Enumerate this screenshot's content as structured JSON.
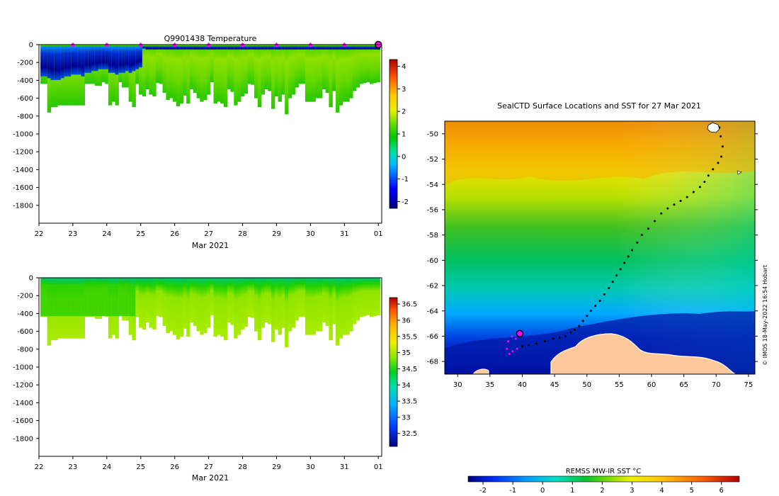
{
  "chart_data": [
    {
      "id": "temperature_section",
      "type": "heatmap",
      "title": "Q9901438  Temperature",
      "xlabel": "Mar 2021",
      "ylabel": "",
      "x_tick_labels": [
        "22",
        "23",
        "24",
        "25",
        "26",
        "27",
        "28",
        "29",
        "30",
        "31",
        "01"
      ],
      "y_tick_labels": [
        "0",
        "-200",
        "-400",
        "-600",
        "-800",
        "-1000",
        "-1200",
        "-1400",
        "-1600",
        "-1800"
      ],
      "ylim": [
        -2000,
        0
      ],
      "profile_markers_days": [
        23,
        24,
        25,
        26,
        27,
        28,
        29,
        30,
        31,
        32
      ],
      "current_marker_day": 32,
      "colorbar": {
        "range": [
          -2.3,
          4.3
        ],
        "ticks": [
          "4",
          "3",
          "2",
          "1",
          "0",
          "-1",
          "-2"
        ]
      },
      "profiles": {
        "start_day": 22.1,
        "step_days": 0.1,
        "max_depths": [
          440,
          440,
          760,
          700,
          700,
          680,
          680,
          680,
          680,
          680,
          680,
          680,
          680,
          440,
          440,
          440,
          460,
          460,
          420,
          440,
          680,
          640,
          680,
          420,
          480,
          480,
          640,
          700,
          440,
          560,
          580,
          500,
          560,
          580,
          430,
          440,
          540,
          620,
          600,
          640,
          690,
          660,
          570,
          660,
          500,
          540,
          600,
          640,
          620,
          560,
          420,
          660,
          640,
          660,
          700,
          500,
          530,
          680,
          640,
          580,
          550,
          440,
          450,
          600,
          700,
          560,
          500,
          520,
          720,
          580,
          640,
          560,
          780,
          600,
          560,
          480,
          440,
          440,
          640,
          640,
          640,
          600,
          600,
          500,
          540,
          700,
          520,
          760,
          680,
          640,
          640,
          600,
          520,
          480,
          440,
          430,
          420,
          440,
          430,
          420
        ],
        "cold_layer_bottom": [
          340,
          340,
          360,
          380,
          380,
          380,
          360,
          340,
          340,
          320,
          320,
          320,
          340,
          300,
          300,
          280,
          280,
          260,
          260,
          260,
          300,
          300,
          320,
          300,
          300,
          280,
          300,
          280,
          260,
          240,
          30,
          40,
          40,
          40,
          40,
          40,
          40,
          40,
          40,
          40,
          40,
          40,
          40,
          40,
          40,
          40,
          40,
          40,
          40,
          40,
          40,
          40,
          40,
          40,
          40,
          40,
          40,
          40,
          40,
          40,
          40,
          40,
          40,
          40,
          40,
          40,
          40,
          40,
          40,
          40,
          40,
          40,
          40,
          40,
          40,
          40,
          40,
          40,
          40,
          40,
          40,
          40,
          40,
          40,
          40,
          40,
          40,
          40,
          40,
          40,
          40,
          40,
          40,
          40,
          40,
          40,
          40,
          40,
          40,
          40
        ]
      }
    },
    {
      "id": "salinity_section",
      "type": "heatmap",
      "title": "",
      "xlabel": "Mar 2021",
      "x_tick_labels": [
        "22",
        "23",
        "24",
        "25",
        "26",
        "27",
        "28",
        "29",
        "30",
        "31",
        "01"
      ],
      "y_tick_labels": [
        "0",
        "-200",
        "-400",
        "-600",
        "-800",
        "-1000",
        "-1200",
        "-1400",
        "-1600",
        "-1800"
      ],
      "ylim": [
        -2000,
        0
      ],
      "colorbar": {
        "range": [
          32.1,
          36.7
        ],
        "ticks": [
          "36.5",
          "36",
          "35.5",
          "35",
          "34.5",
          "34",
          "33.5",
          "33",
          "32.5"
        ]
      }
    },
    {
      "id": "sst_map",
      "type": "heatmap",
      "title": "SealCTD Surface Locations and SST for 27 Mar 2021",
      "xlim": [
        28,
        76
      ],
      "ylim": [
        -69,
        -49
      ],
      "x_tick_labels": [
        "30",
        "35",
        "40",
        "45",
        "50",
        "55",
        "60",
        "65",
        "70",
        "75"
      ],
      "y_tick_labels": [
        "-50",
        "-52",
        "-54",
        "-56",
        "-58",
        "-60",
        "-62",
        "-64",
        "-66",
        "-68"
      ],
      "track": {
        "lon": [
          70.5,
          70.7,
          71.0,
          70.8,
          70.3,
          69.5,
          68.8,
          68.2,
          67.5,
          66.5,
          65.5,
          64.5,
          63.5,
          62.5,
          61.5,
          60.5,
          59.5,
          58.5,
          57.8,
          57.0,
          56.4,
          55.8,
          55.2,
          54.6,
          54.0,
          53.4,
          52.7,
          52.0,
          51.3,
          50.6,
          50.0,
          49.4,
          48.8,
          48.1,
          47.5,
          46.7,
          45.8,
          44.8,
          43.5,
          42.2,
          41.0,
          40.0,
          39.2,
          38.5,
          38.0,
          37.6,
          37.8,
          38.4,
          39.0,
          39.6
        ],
        "lat": [
          -49.5,
          -50.2,
          -51.0,
          -51.8,
          -52.3,
          -52.8,
          -53.3,
          -53.8,
          -54.2,
          -54.6,
          -55.0,
          -55.3,
          -55.6,
          -55.9,
          -56.3,
          -56.9,
          -57.5,
          -58.0,
          -58.6,
          -59.2,
          -59.7,
          -60.2,
          -60.7,
          -61.2,
          -61.7,
          -62.2,
          -62.7,
          -63.2,
          -63.6,
          -64.0,
          -64.4,
          -64.8,
          -65.2,
          -65.5,
          -65.7,
          -66.0,
          -66.1,
          -66.2,
          -66.4,
          -66.6,
          -66.7,
          -66.8,
          -67.0,
          -67.2,
          -67.4,
          -67.0,
          -66.4,
          -66.0,
          -66.2,
          -65.8
        ]
      },
      "current_position": {
        "lon": 39.6,
        "lat": -65.8
      }
    },
    {
      "id": "sst_colorbar",
      "type": "heatmap",
      "title": "REMSS MW-IR SST °C",
      "range": [
        -2.5,
        6.6
      ],
      "ticks": [
        "-2",
        "-1",
        "0",
        "1",
        "2",
        "3",
        "4",
        "5",
        "6"
      ]
    }
  ],
  "credit": "© IMOS 18-May-2022 16:54 Hobart",
  "colors": {
    "antarctica_land": "#fcc89c",
    "profile_marker": "#ff00ff",
    "track_points": "#000000"
  }
}
